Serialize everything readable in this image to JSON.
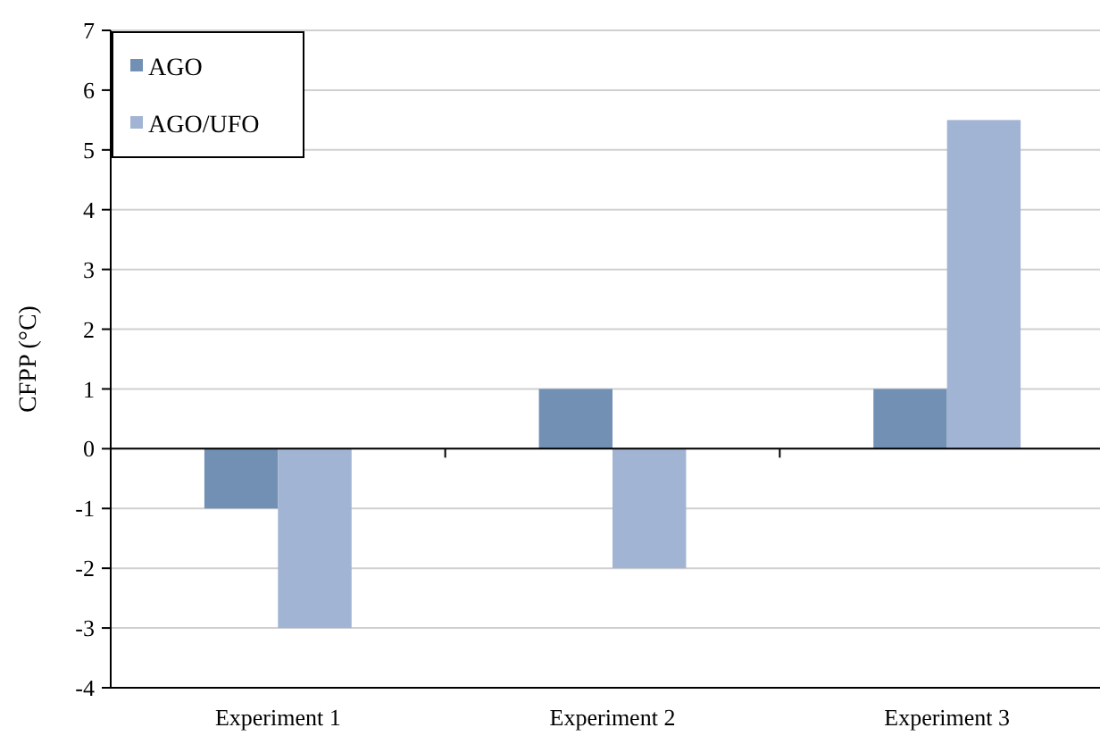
{
  "chart_data": {
    "type": "bar",
    "ylabel": "CFPP (°C)",
    "categories": [
      "Experiment 1",
      "Experiment 2",
      "Experiment 3"
    ],
    "series": [
      {
        "name": "AGO",
        "color": "#7190b4",
        "values": [
          -1,
          1,
          1
        ]
      },
      {
        "name": "AGO/UFO",
        "color": "#a2b4d3",
        "values": [
          -3,
          -2,
          5.5
        ]
      }
    ],
    "ylim": [
      -4,
      7
    ],
    "yticks": [
      -4,
      -3,
      -2,
      -1,
      0,
      1,
      2,
      3,
      4,
      5,
      6,
      7
    ],
    "grid": "y",
    "legend": "top left"
  }
}
